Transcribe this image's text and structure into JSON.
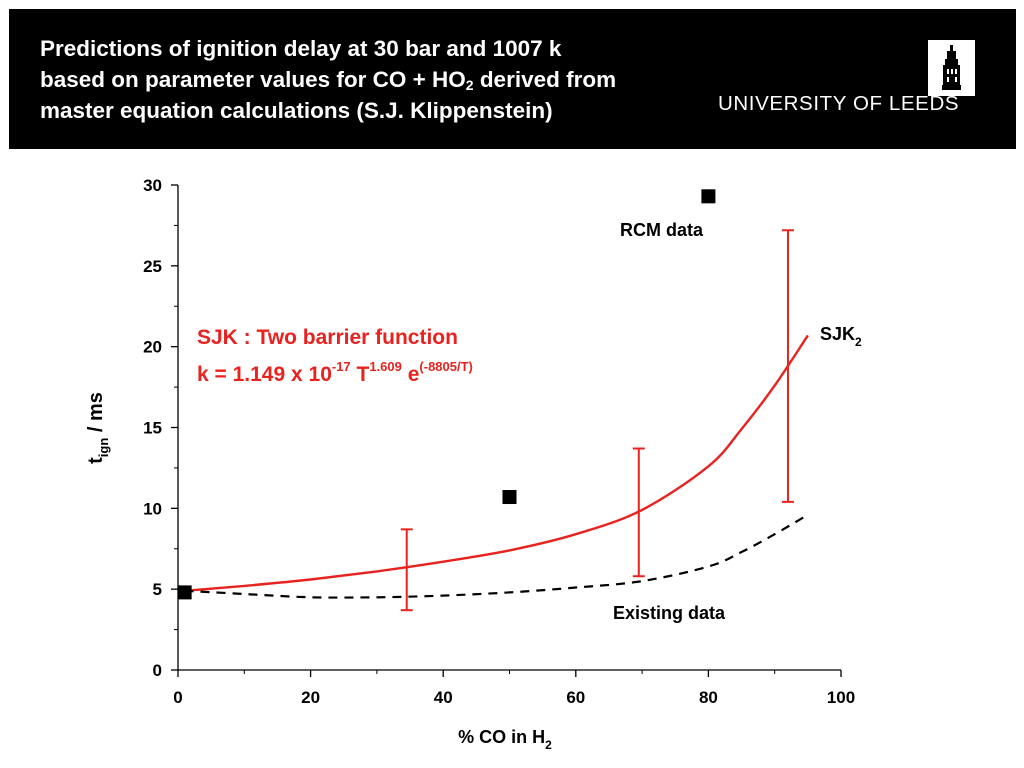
{
  "header": {
    "title_line1": "Predictions of ignition delay at 30 bar and 1007 k",
    "title_line2_pre": "based on parameter values for CO + HO",
    "title_line2_sub": "2",
    "title_line2_post": " derived from",
    "title_line3": "master equation calculations (S.J. Klippenstein)",
    "logo_text": "UNIVERSITY OF LEEDS"
  },
  "colors": {
    "header_bg": "#000000",
    "accent": "#e8231f",
    "rcm": "#000000",
    "existing": "#000000"
  },
  "chart_data": {
    "type": "scatter",
    "xlabel_pre": "% CO in H",
    "xlabel_sub": "2",
    "ylabel_pre": "t",
    "ylabel_sub": "ign",
    "ylabel_post": " / ms",
    "xlim": [
      0,
      100
    ],
    "ylim": [
      0,
      30
    ],
    "xticks": [
      0,
      20,
      40,
      60,
      80,
      100
    ],
    "yticks": [
      0,
      5,
      10,
      15,
      20,
      25,
      30
    ],
    "series": [
      {
        "name": "RCM data",
        "kind": "points",
        "x": [
          1,
          50,
          80
        ],
        "y": [
          4.8,
          10.7,
          29.3
        ]
      },
      {
        "name": "SJK",
        "name_sub": "2",
        "kind": "line",
        "x": [
          1,
          10,
          20,
          30,
          40,
          50,
          60,
          70,
          80,
          85,
          90,
          95
        ],
        "y": [
          4.9,
          5.2,
          5.6,
          6.1,
          6.7,
          7.4,
          8.4,
          9.9,
          12.6,
          14.9,
          17.6,
          20.7
        ]
      },
      {
        "name": "Existing data",
        "kind": "line-dashed",
        "x": [
          1,
          10,
          20,
          30,
          40,
          50,
          60,
          70,
          80,
          85,
          90,
          95
        ],
        "y": [
          4.9,
          4.7,
          4.5,
          4.5,
          4.6,
          4.8,
          5.1,
          5.5,
          6.4,
          7.3,
          8.4,
          9.6
        ]
      }
    ],
    "error_bars": [
      {
        "x": 34.5,
        "low": 3.7,
        "high": 8.7
      },
      {
        "x": 69.5,
        "low": 5.8,
        "high": 13.7
      },
      {
        "x": 92,
        "low": 10.4,
        "high": 27.2
      }
    ],
    "annotations": {
      "rcm_label": "RCM data",
      "existing_label": "Existing data",
      "sjk_label": "SJK",
      "sjk_label_sub": "2",
      "formula_line1": "SJK :  Two barrier function",
      "formula_k": "k = 1.149 x 10",
      "formula_exp1": "-17",
      "formula_T": " T",
      "formula_exp2": "1.609",
      "formula_e": " e",
      "formula_exp3": "(-8805/T)"
    }
  }
}
